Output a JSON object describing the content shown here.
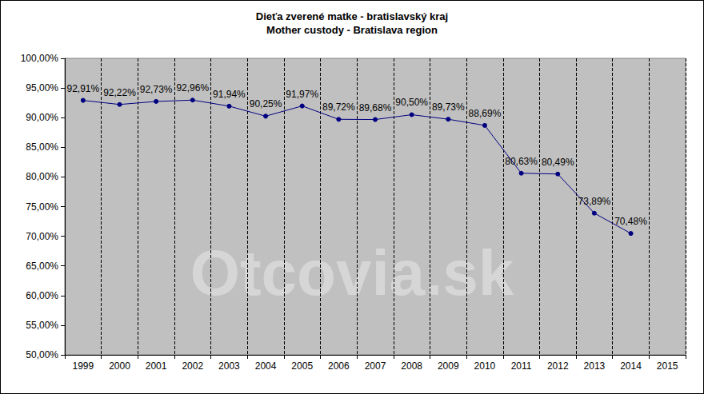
{
  "chart_data": {
    "type": "line",
    "title": "Dieťa zverené matke - bratislavský kraj",
    "subtitle": "Mother custody - Bratislava region",
    "annotations": [
      "Otcovia.sk"
    ],
    "categories": [
      "1999",
      "2000",
      "2001",
      "2002",
      "2003",
      "2004",
      "2005",
      "2006",
      "2007",
      "2008",
      "2009",
      "2010",
      "2011",
      "2012",
      "2013",
      "2014",
      "2015"
    ],
    "values": [
      92.91,
      92.22,
      92.73,
      92.96,
      91.94,
      90.25,
      91.97,
      89.72,
      89.68,
      90.5,
      89.73,
      88.69,
      80.63,
      80.49,
      73.89,
      70.48,
      null
    ],
    "value_labels": [
      "92,91%",
      "92,22%",
      "92,73%",
      "92,96%",
      "91,94%",
      "90,25%",
      "91,97%",
      "89,72%",
      "89,68%",
      "90,50%",
      "89,73%",
      "88,69%",
      "80,63%",
      "80,49%",
      "73,89%",
      "70,48%",
      null
    ],
    "data_labels": true,
    "color": "#000080",
    "marker": "circle",
    "line_style": "solid",
    "grid": true,
    "ylim": [
      50,
      100
    ],
    "yticks": [
      {
        "value": 50,
        "label": "50,00%"
      },
      {
        "value": 55,
        "label": "55,00%"
      },
      {
        "value": 60,
        "label": "60,00%"
      },
      {
        "value": 65,
        "label": "65,00%"
      },
      {
        "value": 70,
        "label": "70,00%"
      },
      {
        "value": 75,
        "label": "75,00%"
      },
      {
        "value": 80,
        "label": "80,00%"
      },
      {
        "value": 85,
        "label": "85,00%"
      },
      {
        "value": 90,
        "label": "90,00%"
      },
      {
        "value": 95,
        "label": "95,00%"
      },
      {
        "value": 100,
        "label": "100,00%"
      }
    ]
  }
}
